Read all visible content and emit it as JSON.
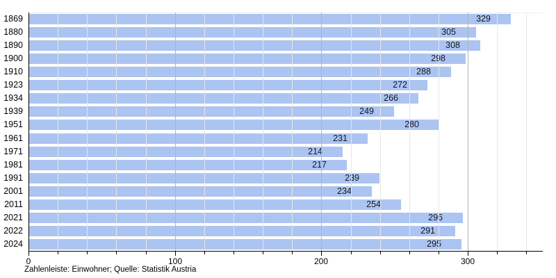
{
  "chart_data": {
    "type": "bar",
    "orientation": "horizontal",
    "title": "",
    "categories": [
      "1869",
      "1880",
      "1890",
      "1900",
      "1910",
      "1923",
      "1934",
      "1939",
      "1951",
      "1961",
      "1971",
      "1981",
      "1991",
      "2001",
      "2011",
      "2021",
      "2022",
      "2024"
    ],
    "values": [
      329,
      305,
      308,
      298,
      288,
      272,
      266,
      249,
      280,
      231,
      214,
      217,
      239,
      234,
      254,
      296,
      291,
      295
    ],
    "xlabel": "",
    "ylabel": "",
    "x_ticks_major": [
      0,
      100,
      200,
      300
    ],
    "x_minor_step": 20,
    "x_minor_max": 340,
    "xlim": [
      0,
      351
    ],
    "grid": true,
    "legend": null,
    "caption": "Zahlenleiste: Einwohner; Quelle: Statistik Austria",
    "colors": {
      "bar": "#abc4f1",
      "grid_minor": "#e6e6e6",
      "grid_major": "#b3b3b3",
      "axis": "#000000",
      "value_label": "#14141e"
    }
  }
}
